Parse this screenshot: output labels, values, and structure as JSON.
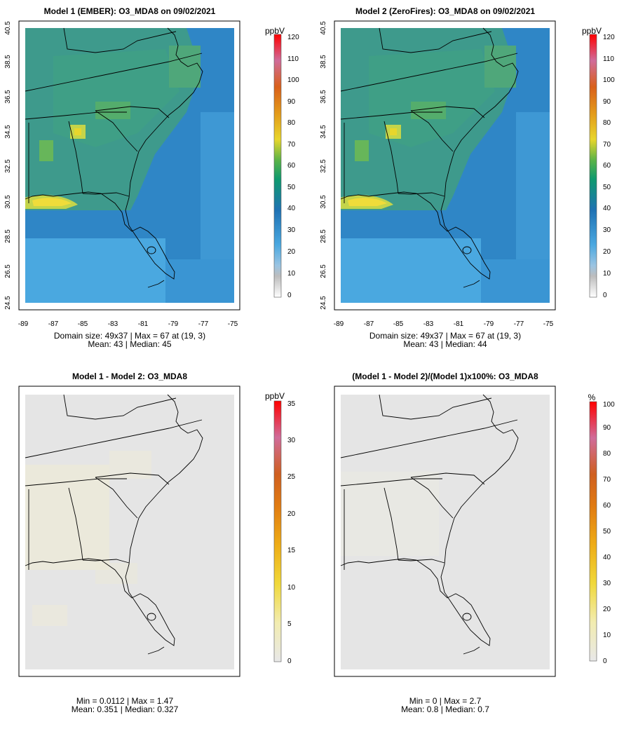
{
  "colors": {
    "ocean_low": "#4aa8e0",
    "ocean_mid": "#2f86c6",
    "land_mid": "#3e9a8c",
    "land_hi": "#54ad6c",
    "hotspot": "#c4d44a",
    "peak": "#f0dc3a",
    "diff_bg": "#e5e5e5",
    "diff_patch": "#ecead8"
  },
  "panels": [
    {
      "title": "Model 1 (EMBER): O3_MDA8 on 09/02/2021",
      "unit": "ppbV",
      "x_ticks": [
        "-89",
        "-87",
        "-85",
        "-83",
        "-81",
        "-79",
        "-77",
        "-75"
      ],
      "y_ticks": [
        "24.5",
        "26.5",
        "28.5",
        "30.5",
        "32.5",
        "34.5",
        "36.5",
        "38.5",
        "40.5"
      ],
      "legend_ticks": [
        "0",
        "10",
        "20",
        "30",
        "40",
        "50",
        "60",
        "70",
        "80",
        "90",
        "100",
        "110",
        "120"
      ],
      "stats_line1": "Domain size: 49x37 | Max = 67 at (19, 3)",
      "stats_line2": "Mean: 43 |  Median: 45"
    },
    {
      "title": "Model 2 (ZeroFires): O3_MDA8 on 09/02/2021",
      "unit": "ppbV",
      "x_ticks": [
        "-89",
        "-87",
        "-85",
        "-83",
        "-81",
        "-79",
        "-77",
        "-75"
      ],
      "y_ticks": [
        "24.5",
        "26.5",
        "28.5",
        "30.5",
        "32.5",
        "34.5",
        "36.5",
        "38.5",
        "40.5"
      ],
      "legend_ticks": [
        "0",
        "10",
        "20",
        "30",
        "40",
        "50",
        "60",
        "70",
        "80",
        "90",
        "100",
        "110",
        "120"
      ],
      "stats_line1": "Domain size: 49x37 | Max = 67 at (19, 3)",
      "stats_line2": "Mean: 43 |  Median: 44"
    },
    {
      "title": "Model 1 - Model 2: O3_MDA8",
      "unit": "ppbV",
      "legend_ticks": [
        "0",
        "5",
        "10",
        "15",
        "20",
        "25",
        "30",
        "35"
      ],
      "stats_line1": "Min = 0.0112 | Max = 1.47",
      "stats_line2": "Mean: 0.351 |  Median: 0.327"
    },
    {
      "title": "(Model 1 - Model 2)/(Model 1)x100%: O3_MDA8",
      "unit": "%",
      "legend_ticks": [
        "0",
        "10",
        "20",
        "30",
        "40",
        "50",
        "60",
        "70",
        "80",
        "90",
        "100"
      ],
      "stats_line1": "Min = 0 | Max = 2.7",
      "stats_line2": "Mean: 0.8 |  Median: 0.7"
    }
  ]
}
